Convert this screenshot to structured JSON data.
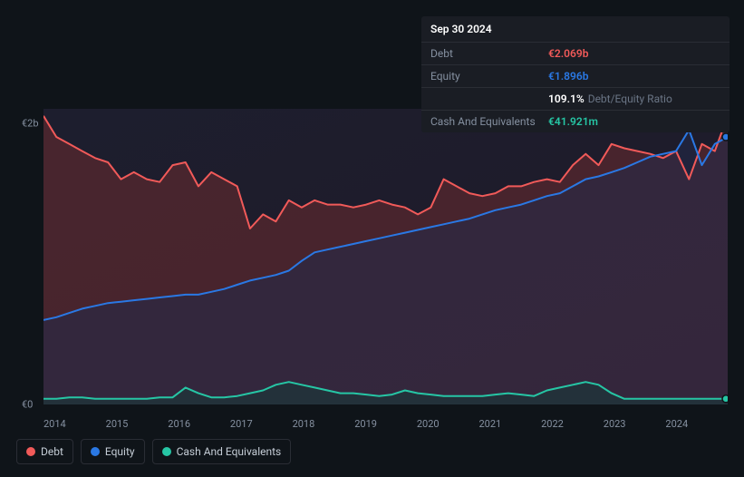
{
  "tooltip": {
    "date": "Sep 30 2024",
    "rows": [
      {
        "label": "Debt",
        "value": "€2.069b",
        "cls": "debt"
      },
      {
        "label": "Equity",
        "value": "€1.896b",
        "cls": "equity"
      },
      {
        "label": "",
        "value": "109.1%",
        "suffix": "Debt/Equity Ratio",
        "cls": "ratio"
      },
      {
        "label": "Cash And Equivalents",
        "value": "€41.921m",
        "cls": "cash"
      }
    ]
  },
  "chart": {
    "background_color": "#0f1419",
    "plot_gradient_from": "#1d1e2e",
    "plot_gradient_to": "#1f1a28",
    "baseline_color": "#3a4050",
    "ylim": [
      0,
      2.1
    ],
    "yticks": [
      {
        "v": 0,
        "label": "€0"
      },
      {
        "v": 2.0,
        "label": "€2b"
      }
    ],
    "xticks": [
      "2014",
      "2015",
      "2016",
      "2017",
      "2018",
      "2019",
      "2020",
      "2021",
      "2022",
      "2023",
      "2024"
    ],
    "series": [
      {
        "name": "Debt",
        "color": "#f15a59",
        "fill": "#6b2b30",
        "fill_opacity": 0.55,
        "line_width": 2,
        "values": [
          2.05,
          1.9,
          1.85,
          1.8,
          1.75,
          1.72,
          1.6,
          1.65,
          1.6,
          1.58,
          1.7,
          1.72,
          1.55,
          1.65,
          1.6,
          1.55,
          1.25,
          1.35,
          1.3,
          1.45,
          1.4,
          1.45,
          1.42,
          1.42,
          1.4,
          1.42,
          1.45,
          1.42,
          1.4,
          1.35,
          1.4,
          1.6,
          1.55,
          1.5,
          1.48,
          1.5,
          1.55,
          1.55,
          1.58,
          1.6,
          1.58,
          1.7,
          1.78,
          1.7,
          1.85,
          1.82,
          1.8,
          1.78,
          1.75,
          1.8,
          1.6,
          1.85,
          1.8,
          2.05
        ]
      },
      {
        "name": "Equity",
        "color": "#2a78e4",
        "fill": "#232a4a",
        "fill_opacity": 0.55,
        "line_width": 2,
        "values": [
          0.6,
          0.62,
          0.65,
          0.68,
          0.7,
          0.72,
          0.73,
          0.74,
          0.75,
          0.76,
          0.77,
          0.78,
          0.78,
          0.8,
          0.82,
          0.85,
          0.88,
          0.9,
          0.92,
          0.95,
          1.02,
          1.08,
          1.1,
          1.12,
          1.14,
          1.16,
          1.18,
          1.2,
          1.22,
          1.24,
          1.26,
          1.28,
          1.3,
          1.32,
          1.35,
          1.38,
          1.4,
          1.42,
          1.45,
          1.48,
          1.5,
          1.55,
          1.6,
          1.62,
          1.65,
          1.68,
          1.72,
          1.76,
          1.78,
          1.8,
          1.95,
          1.7,
          1.85,
          1.9
        ]
      },
      {
        "name": "Cash And Equivalents",
        "color": "#26c6a5",
        "fill": "#163a38",
        "fill_opacity": 0.55,
        "line_width": 2,
        "values": [
          0.04,
          0.04,
          0.05,
          0.05,
          0.04,
          0.04,
          0.04,
          0.04,
          0.04,
          0.05,
          0.05,
          0.12,
          0.08,
          0.05,
          0.05,
          0.06,
          0.08,
          0.1,
          0.14,
          0.16,
          0.14,
          0.12,
          0.1,
          0.08,
          0.08,
          0.07,
          0.06,
          0.07,
          0.1,
          0.08,
          0.07,
          0.06,
          0.06,
          0.06,
          0.06,
          0.07,
          0.08,
          0.07,
          0.06,
          0.1,
          0.12,
          0.14,
          0.16,
          0.14,
          0.08,
          0.04,
          0.04,
          0.04,
          0.04,
          0.04,
          0.04,
          0.04,
          0.04,
          0.04
        ]
      }
    ]
  },
  "legend": [
    {
      "label": "Debt",
      "color": "#f15a59"
    },
    {
      "label": "Equity",
      "color": "#2a78e4"
    },
    {
      "label": "Cash And Equivalents",
      "color": "#26c6a5"
    }
  ]
}
